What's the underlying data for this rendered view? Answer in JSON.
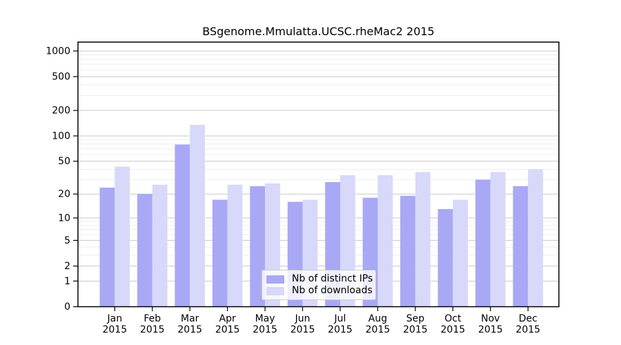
{
  "chart_data": {
    "type": "bar",
    "title": "BSgenome.Mmulatta.UCSC.rheMac2 2015",
    "categories": [
      "Jan",
      "Feb",
      "Mar",
      "Apr",
      "May",
      "Jun",
      "Jul",
      "Aug",
      "Sep",
      "Oct",
      "Nov",
      "Dec"
    ],
    "year_label": "2015",
    "series": [
      {
        "name": "Nb of distinct IPs",
        "color": "#a8a8f5",
        "values": [
          24,
          20,
          79,
          17,
          25,
          16,
          28,
          18,
          19,
          13,
          30,
          25
        ]
      },
      {
        "name": "Nb of downloads",
        "color": "#d8d8fa",
        "values": [
          43,
          26,
          135,
          26,
          27,
          17,
          34,
          34,
          37,
          17,
          37,
          40
        ]
      }
    ],
    "y_axis": {
      "scale": "log10(1+x)",
      "ticks": [
        0,
        1,
        2,
        5,
        10,
        20,
        50,
        100,
        200,
        500,
        1000
      ],
      "minor_ticks": [
        3,
        4,
        6,
        7,
        8,
        9,
        30,
        40,
        60,
        70,
        80,
        90,
        300,
        400,
        600,
        700,
        800,
        900
      ],
      "ylim": [
        0,
        1300
      ]
    },
    "legend": {
      "position": "lower-center",
      "entries": [
        "Nb of distinct IPs",
        "Nb of downloads"
      ]
    },
    "grid": {
      "major_color": "#c8c8c8",
      "minor_color": "#ededed"
    },
    "axis_color": "#000000",
    "text_color": "#000000"
  }
}
